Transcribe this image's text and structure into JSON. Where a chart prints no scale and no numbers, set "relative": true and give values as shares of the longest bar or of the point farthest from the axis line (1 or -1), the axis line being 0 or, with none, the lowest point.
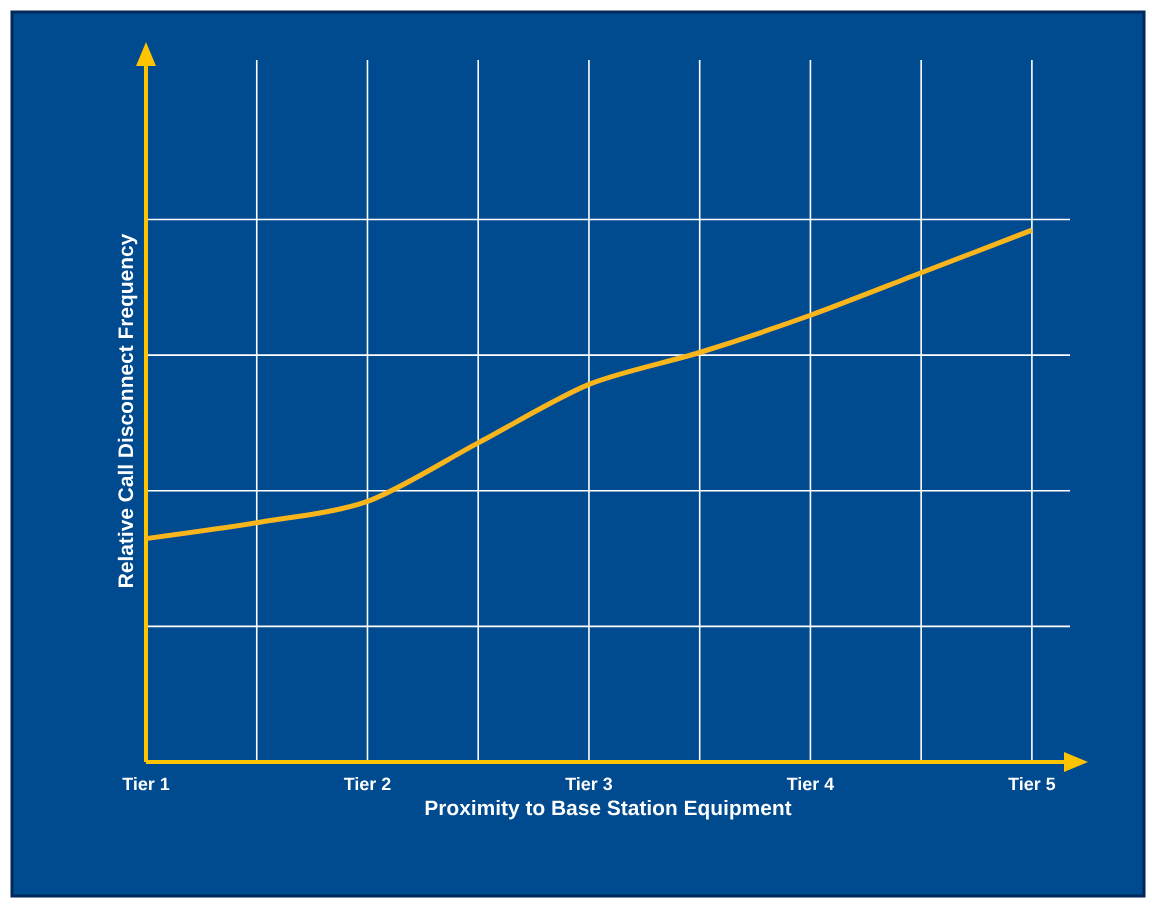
{
  "chart_data": {
    "type": "line",
    "relative": true,
    "xlabel": "Proximity to Base Station Equipment",
    "ylabel": "Relative Call Disconnect Frequency",
    "categories": [
      "Tier 1",
      null,
      "Tier 2",
      null,
      "Tier 3",
      null,
      "Tier 4",
      null,
      "Tier 5"
    ],
    "series": [
      {
        "color": "#f9b51c",
        "values": [
          0.42,
          0.45,
          0.49,
          0.6,
          0.71,
          0.77,
          0.84,
          0.92,
          1
        ]
      }
    ],
    "grid": true,
    "marker": "none",
    "line_style": "solid"
  }
}
